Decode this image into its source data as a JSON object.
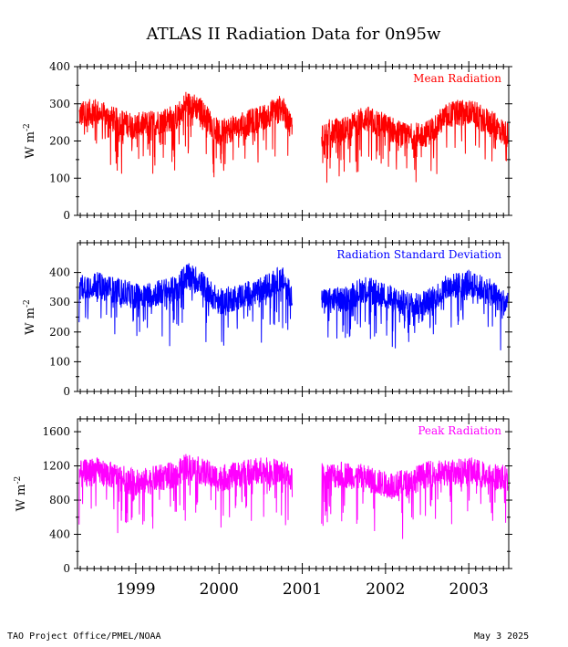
{
  "page": {
    "title": "ATLAS II Radiation Data for 0n95w",
    "footer_left": "TAO Project Office/PMEL/NOAA",
    "footer_right": "May  3 2025"
  },
  "chart_data": [
    {
      "type": "line",
      "title": "Mean Radiation",
      "ylabel": "W m",
      "ylabel_sup": "-2",
      "color": "#ff0000",
      "ylim": [
        0,
        400
      ],
      "yticks": [
        0,
        100,
        200,
        300,
        400
      ],
      "xlim": [
        1998.3,
        2003.48
      ],
      "gap": [
        2000.88,
        2001.23
      ],
      "series": [
        {
          "x": [
            1998.32,
            1998.5,
            1998.75,
            1999.0,
            1999.25,
            1999.5,
            1999.6,
            1999.75,
            2000.0,
            2000.25,
            2000.5,
            2000.75,
            2000.87,
            2001.25,
            2001.5,
            2001.75,
            2002.0,
            2002.25,
            2002.5,
            2002.75,
            2003.0,
            2003.25,
            2003.47
          ],
          "values": [
            270,
            280,
            255,
            240,
            250,
            265,
            300,
            290,
            220,
            240,
            260,
            290,
            240,
            220,
            230,
            260,
            240,
            210,
            220,
            270,
            280,
            250,
            215
          ]
        }
      ]
    },
    {
      "type": "line",
      "title": "Radiation Standard Deviation",
      "ylabel": "W m",
      "ylabel_sup": "-2",
      "color": "#0000ff",
      "ylim": [
        0,
        500
      ],
      "yticks": [
        0,
        100,
        200,
        300,
        400
      ],
      "xlim": [
        1998.3,
        2003.48
      ],
      "gap": [
        2000.88,
        2001.23
      ],
      "series": [
        {
          "x": [
            1998.32,
            1998.5,
            1998.75,
            1999.0,
            1999.25,
            1999.5,
            1999.6,
            1999.75,
            2000.0,
            2000.25,
            2000.5,
            2000.75,
            2000.87,
            2001.25,
            2001.5,
            2001.75,
            2002.0,
            2002.25,
            2002.5,
            2002.75,
            2003.0,
            2003.25,
            2003.47
          ],
          "values": [
            350,
            360,
            340,
            320,
            330,
            345,
            390,
            375,
            300,
            320,
            340,
            380,
            330,
            300,
            310,
            345,
            320,
            290,
            300,
            350,
            365,
            335,
            290
          ]
        }
      ]
    },
    {
      "type": "line",
      "title": "Peak Radiation",
      "ylabel": "W m",
      "ylabel_sup": "-2",
      "color": "#ff00ff",
      "ylim": [
        0,
        1750
      ],
      "yticks": [
        0,
        400,
        800,
        1200,
        1600
      ],
      "xlim": [
        1998.3,
        2003.48
      ],
      "gap": [
        2000.88,
        2001.23
      ],
      "xticklabels": [
        "1999",
        "2000",
        "2001",
        "2002",
        "2003"
      ],
      "xtickvalues": [
        1999.0,
        2000.0,
        2001.0,
        2002.0,
        2003.0
      ],
      "series": [
        {
          "x": [
            1998.32,
            1998.5,
            1998.75,
            1999.0,
            1999.25,
            1999.5,
            1999.6,
            1999.75,
            2000.0,
            2000.25,
            2000.5,
            2000.75,
            2000.87,
            2001.25,
            2001.5,
            2001.75,
            2002.0,
            2002.25,
            2002.5,
            2002.75,
            2003.0,
            2003.25,
            2003.47
          ],
          "values": [
            1100,
            1150,
            1080,
            1000,
            1050,
            1100,
            1200,
            1150,
            1050,
            1100,
            1150,
            1120,
            1050,
            1080,
            1100,
            1060,
            980,
            1000,
            1100,
            1120,
            1150,
            1080,
            1050
          ]
        }
      ]
    }
  ]
}
